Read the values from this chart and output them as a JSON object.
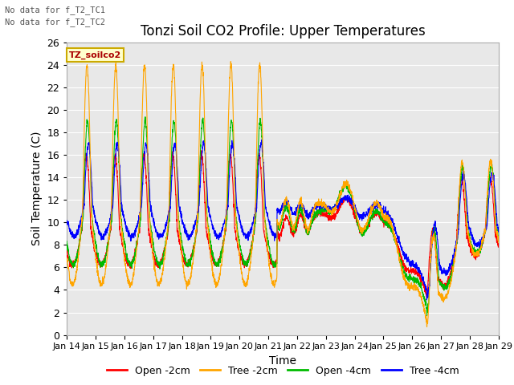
{
  "title": "Tonzi Soil CO2 Profile: Upper Temperatures",
  "xlabel": "Time",
  "ylabel": "Soil Temperature (C)",
  "annotation1": "No data for f_T2_TC1",
  "annotation2": "No data for f_T2_TC2",
  "legend_box_label": "TZ_soilco2",
  "ylim": [
    0,
    26
  ],
  "yticks": [
    0,
    2,
    4,
    6,
    8,
    10,
    12,
    14,
    16,
    18,
    20,
    22,
    24,
    26
  ],
  "xtick_labels": [
    "Jan 14",
    "Jan 15",
    "Jan 16",
    "Jan 17",
    "Jan 18",
    "Jan 19",
    "Jan 20",
    "Jan 21",
    "Jan 22",
    "Jan 23",
    "Jan 24",
    "Jan 25",
    "Jan 26",
    "Jan 27",
    "Jan 28",
    "Jan 29"
  ],
  "series_labels": [
    "Open -2cm",
    "Tree -2cm",
    "Open -4cm",
    "Tree -4cm"
  ],
  "series_colors": [
    "#ff0000",
    "#ffa500",
    "#00bb00",
    "#0000ff"
  ],
  "background_color": "#ffffff",
  "plot_bg_color": "#e8e8e8",
  "grid_color": "#ffffff",
  "title_fontsize": 12,
  "axis_fontsize": 10,
  "tick_fontsize": 9,
  "n_points": 2880,
  "n_days": 15
}
